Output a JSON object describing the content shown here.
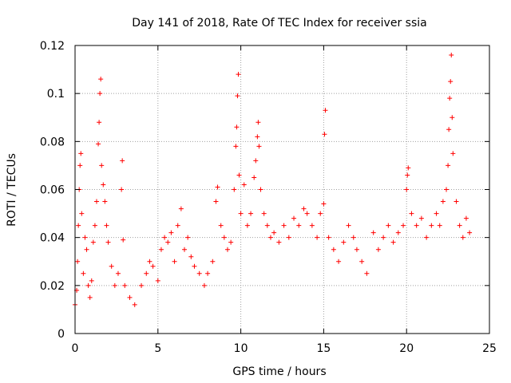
{
  "chart_data": {
    "type": "scatter",
    "title": "Day 141 of 2018, Rate Of TEC Index for receiver ssia",
    "xlabel": "GPS time / hours",
    "ylabel": "ROTI / TECUs",
    "xlim": [
      0,
      25
    ],
    "ylim": [
      0,
      0.12
    ],
    "xticks": [
      0,
      5,
      10,
      15,
      20,
      25
    ],
    "xtick_labels": [
      "0",
      "5",
      "10",
      "15",
      "20",
      "25"
    ],
    "yticks": [
      0,
      0.02,
      0.04,
      0.06,
      0.08,
      0.1,
      0.12
    ],
    "ytick_labels": [
      "0",
      "0.02",
      "0.04",
      "0.06",
      "0.08",
      "0.1",
      "0.12"
    ],
    "grid": true,
    "marker": "+",
    "color": "#ff0000",
    "series": [
      {
        "name": "ROTI",
        "points": [
          [
            0.0,
            0.012
          ],
          [
            0.1,
            0.018
          ],
          [
            0.15,
            0.03
          ],
          [
            0.2,
            0.045
          ],
          [
            0.25,
            0.06
          ],
          [
            0.3,
            0.07
          ],
          [
            0.35,
            0.075
          ],
          [
            0.4,
            0.05
          ],
          [
            0.5,
            0.025
          ],
          [
            0.6,
            0.04
          ],
          [
            0.7,
            0.035
          ],
          [
            0.8,
            0.02
          ],
          [
            0.9,
            0.015
          ],
          [
            1.0,
            0.022
          ],
          [
            1.1,
            0.038
          ],
          [
            1.2,
            0.045
          ],
          [
            1.3,
            0.055
          ],
          [
            1.4,
            0.079
          ],
          [
            1.45,
            0.088
          ],
          [
            1.5,
            0.1
          ],
          [
            1.55,
            0.106
          ],
          [
            1.6,
            0.07
          ],
          [
            1.7,
            0.062
          ],
          [
            1.8,
            0.055
          ],
          [
            1.9,
            0.045
          ],
          [
            2.0,
            0.038
          ],
          [
            2.2,
            0.028
          ],
          [
            2.4,
            0.02
          ],
          [
            2.6,
            0.025
          ],
          [
            2.8,
            0.06
          ],
          [
            2.85,
            0.072
          ],
          [
            2.9,
            0.039
          ],
          [
            3.0,
            0.02
          ],
          [
            3.3,
            0.015
          ],
          [
            3.6,
            0.012
          ],
          [
            4.0,
            0.02
          ],
          [
            4.3,
            0.025
          ],
          [
            4.5,
            0.03
          ],
          [
            4.7,
            0.028
          ],
          [
            5.0,
            0.022
          ],
          [
            5.2,
            0.035
          ],
          [
            5.4,
            0.04
          ],
          [
            5.6,
            0.038
          ],
          [
            5.8,
            0.042
          ],
          [
            6.0,
            0.03
          ],
          [
            6.2,
            0.045
          ],
          [
            6.4,
            0.052
          ],
          [
            6.6,
            0.035
          ],
          [
            6.8,
            0.04
          ],
          [
            7.0,
            0.032
          ],
          [
            7.2,
            0.028
          ],
          [
            7.5,
            0.025
          ],
          [
            7.8,
            0.02
          ],
          [
            8.0,
            0.025
          ],
          [
            8.3,
            0.03
          ],
          [
            8.5,
            0.055
          ],
          [
            8.6,
            0.061
          ],
          [
            8.8,
            0.045
          ],
          [
            9.0,
            0.04
          ],
          [
            9.2,
            0.035
          ],
          [
            9.4,
            0.038
          ],
          [
            9.6,
            0.06
          ],
          [
            9.7,
            0.078
          ],
          [
            9.75,
            0.086
          ],
          [
            9.8,
            0.099
          ],
          [
            9.85,
            0.108
          ],
          [
            9.9,
            0.066
          ],
          [
            10.0,
            0.05
          ],
          [
            10.2,
            0.062
          ],
          [
            10.4,
            0.045
          ],
          [
            10.6,
            0.05
          ],
          [
            10.8,
            0.065
          ],
          [
            10.9,
            0.072
          ],
          [
            11.0,
            0.082
          ],
          [
            11.05,
            0.088
          ],
          [
            11.1,
            0.078
          ],
          [
            11.2,
            0.06
          ],
          [
            11.4,
            0.05
          ],
          [
            11.6,
            0.045
          ],
          [
            11.8,
            0.04
          ],
          [
            12.0,
            0.042
          ],
          [
            12.3,
            0.038
          ],
          [
            12.6,
            0.045
          ],
          [
            12.9,
            0.04
          ],
          [
            13.2,
            0.048
          ],
          [
            13.5,
            0.045
          ],
          [
            13.8,
            0.052
          ],
          [
            14.0,
            0.05
          ],
          [
            14.3,
            0.045
          ],
          [
            14.6,
            0.04
          ],
          [
            14.8,
            0.05
          ],
          [
            15.0,
            0.054
          ],
          [
            15.05,
            0.083
          ],
          [
            15.1,
            0.093
          ],
          [
            15.3,
            0.04
          ],
          [
            15.6,
            0.035
          ],
          [
            15.9,
            0.03
          ],
          [
            16.2,
            0.038
          ],
          [
            16.5,
            0.045
          ],
          [
            16.8,
            0.04
          ],
          [
            17.0,
            0.035
          ],
          [
            17.3,
            0.03
          ],
          [
            17.6,
            0.025
          ],
          [
            18.0,
            0.042
          ],
          [
            18.3,
            0.035
          ],
          [
            18.6,
            0.04
          ],
          [
            18.9,
            0.045
          ],
          [
            19.2,
            0.038
          ],
          [
            19.5,
            0.042
          ],
          [
            19.8,
            0.045
          ],
          [
            20.0,
            0.06
          ],
          [
            20.05,
            0.066
          ],
          [
            20.1,
            0.069
          ],
          [
            20.3,
            0.05
          ],
          [
            20.6,
            0.045
          ],
          [
            20.9,
            0.048
          ],
          [
            21.2,
            0.04
          ],
          [
            21.5,
            0.045
          ],
          [
            21.8,
            0.05
          ],
          [
            22.0,
            0.045
          ],
          [
            22.2,
            0.055
          ],
          [
            22.4,
            0.06
          ],
          [
            22.5,
            0.07
          ],
          [
            22.55,
            0.085
          ],
          [
            22.6,
            0.098
          ],
          [
            22.65,
            0.105
          ],
          [
            22.7,
            0.116
          ],
          [
            22.75,
            0.09
          ],
          [
            22.8,
            0.075
          ],
          [
            23.0,
            0.055
          ],
          [
            23.2,
            0.045
          ],
          [
            23.4,
            0.04
          ],
          [
            23.6,
            0.048
          ],
          [
            23.8,
            0.042
          ]
        ]
      }
    ]
  }
}
